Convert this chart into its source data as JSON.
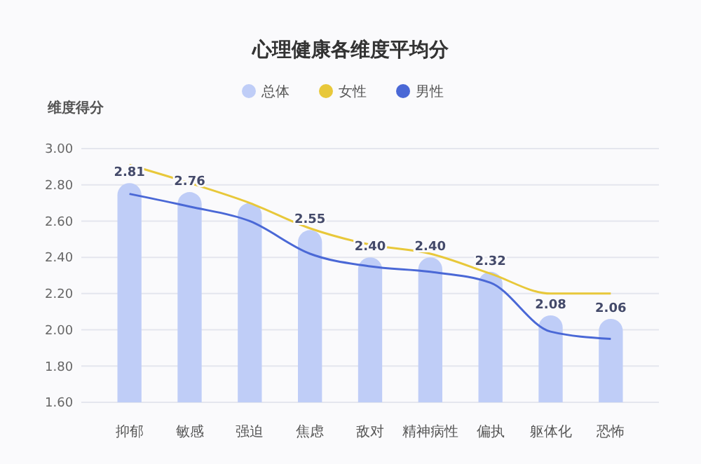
{
  "chart_data": {
    "type": "bar",
    "title": "心理健康各维度平均分",
    "ylabel": "维度得分",
    "categories": [
      "抑郁",
      "敏感",
      "强迫",
      "焦虑",
      "敌对",
      "精神病性",
      "偏执",
      "躯体化",
      "恐怖"
    ],
    "series": [
      {
        "name": "总体",
        "color": "#bfcdf7",
        "values": [
          2.81,
          2.76,
          2.7,
          2.55,
          2.4,
          2.4,
          2.32,
          2.08,
          2.06
        ],
        "value_labels": [
          "2.81",
          "2.76",
          null,
          "2.55",
          "2.40",
          "2.40",
          "2.32",
          "2.08",
          "2.06"
        ]
      },
      {
        "name": "女性",
        "type": "line",
        "color": "#e8c83a",
        "values": [
          2.91,
          2.81,
          2.7,
          2.56,
          2.47,
          2.42,
          2.31,
          2.2,
          2.2
        ]
      },
      {
        "name": "男性",
        "type": "line",
        "color": "#4a68d6",
        "values": [
          2.75,
          2.68,
          2.6,
          2.42,
          2.35,
          2.32,
          2.26,
          1.99,
          1.95
        ]
      }
    ],
    "ylim": [
      1.6,
      3.0
    ],
    "yticks": [
      {
        "value": 1.6,
        "label": "1.60"
      },
      {
        "value": 1.8,
        "label": "1.80"
      },
      {
        "value": 2.0,
        "label": "2.00"
      },
      {
        "value": 2.2,
        "label": "2.20"
      },
      {
        "value": 2.4,
        "label": "2.40"
      },
      {
        "value": 2.6,
        "label": "2.60"
      },
      {
        "value": 2.8,
        "label": "2.80"
      },
      {
        "value": 3.0,
        "label": "3.00"
      }
    ],
    "grid": "y",
    "legend": "top",
    "marker": "none"
  }
}
